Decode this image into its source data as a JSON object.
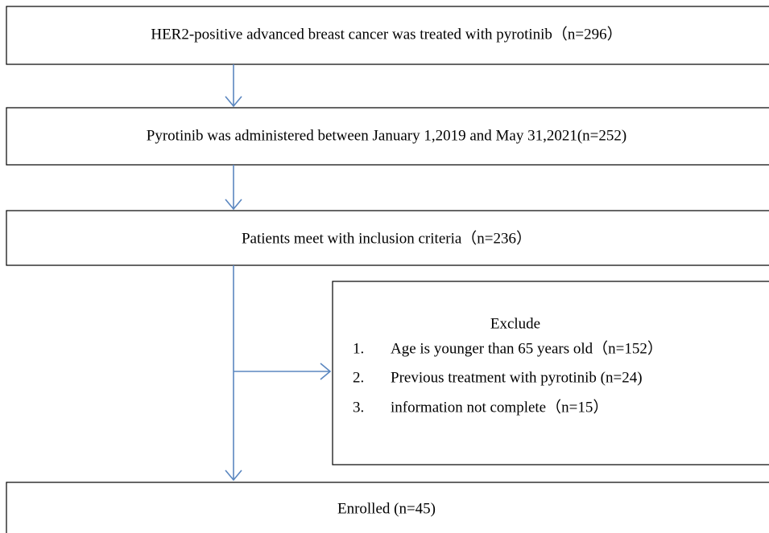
{
  "nodes": [
    {
      "label": "HER2-positive advanced breast cancer was treated with pyrotinib（n=296）"
    },
    {
      "label": "Pyrotinib was administered between January 1,2019 and May 31,2021(n=252)"
    },
    {
      "label": "Patients meet with inclusion criteria（n=236）"
    },
    {
      "label": "Enrolled (n=45)"
    }
  ],
  "exclusion": {
    "title": "Exclude",
    "items": [
      {
        "number": "1.",
        "text": "Age is younger than 65 years old（n=152）"
      },
      {
        "number": "2.",
        "text": "Previous treatment with pyrotinib (n=24)"
      },
      {
        "number": "3.",
        "text": "information not complete（n=15）"
      }
    ]
  }
}
